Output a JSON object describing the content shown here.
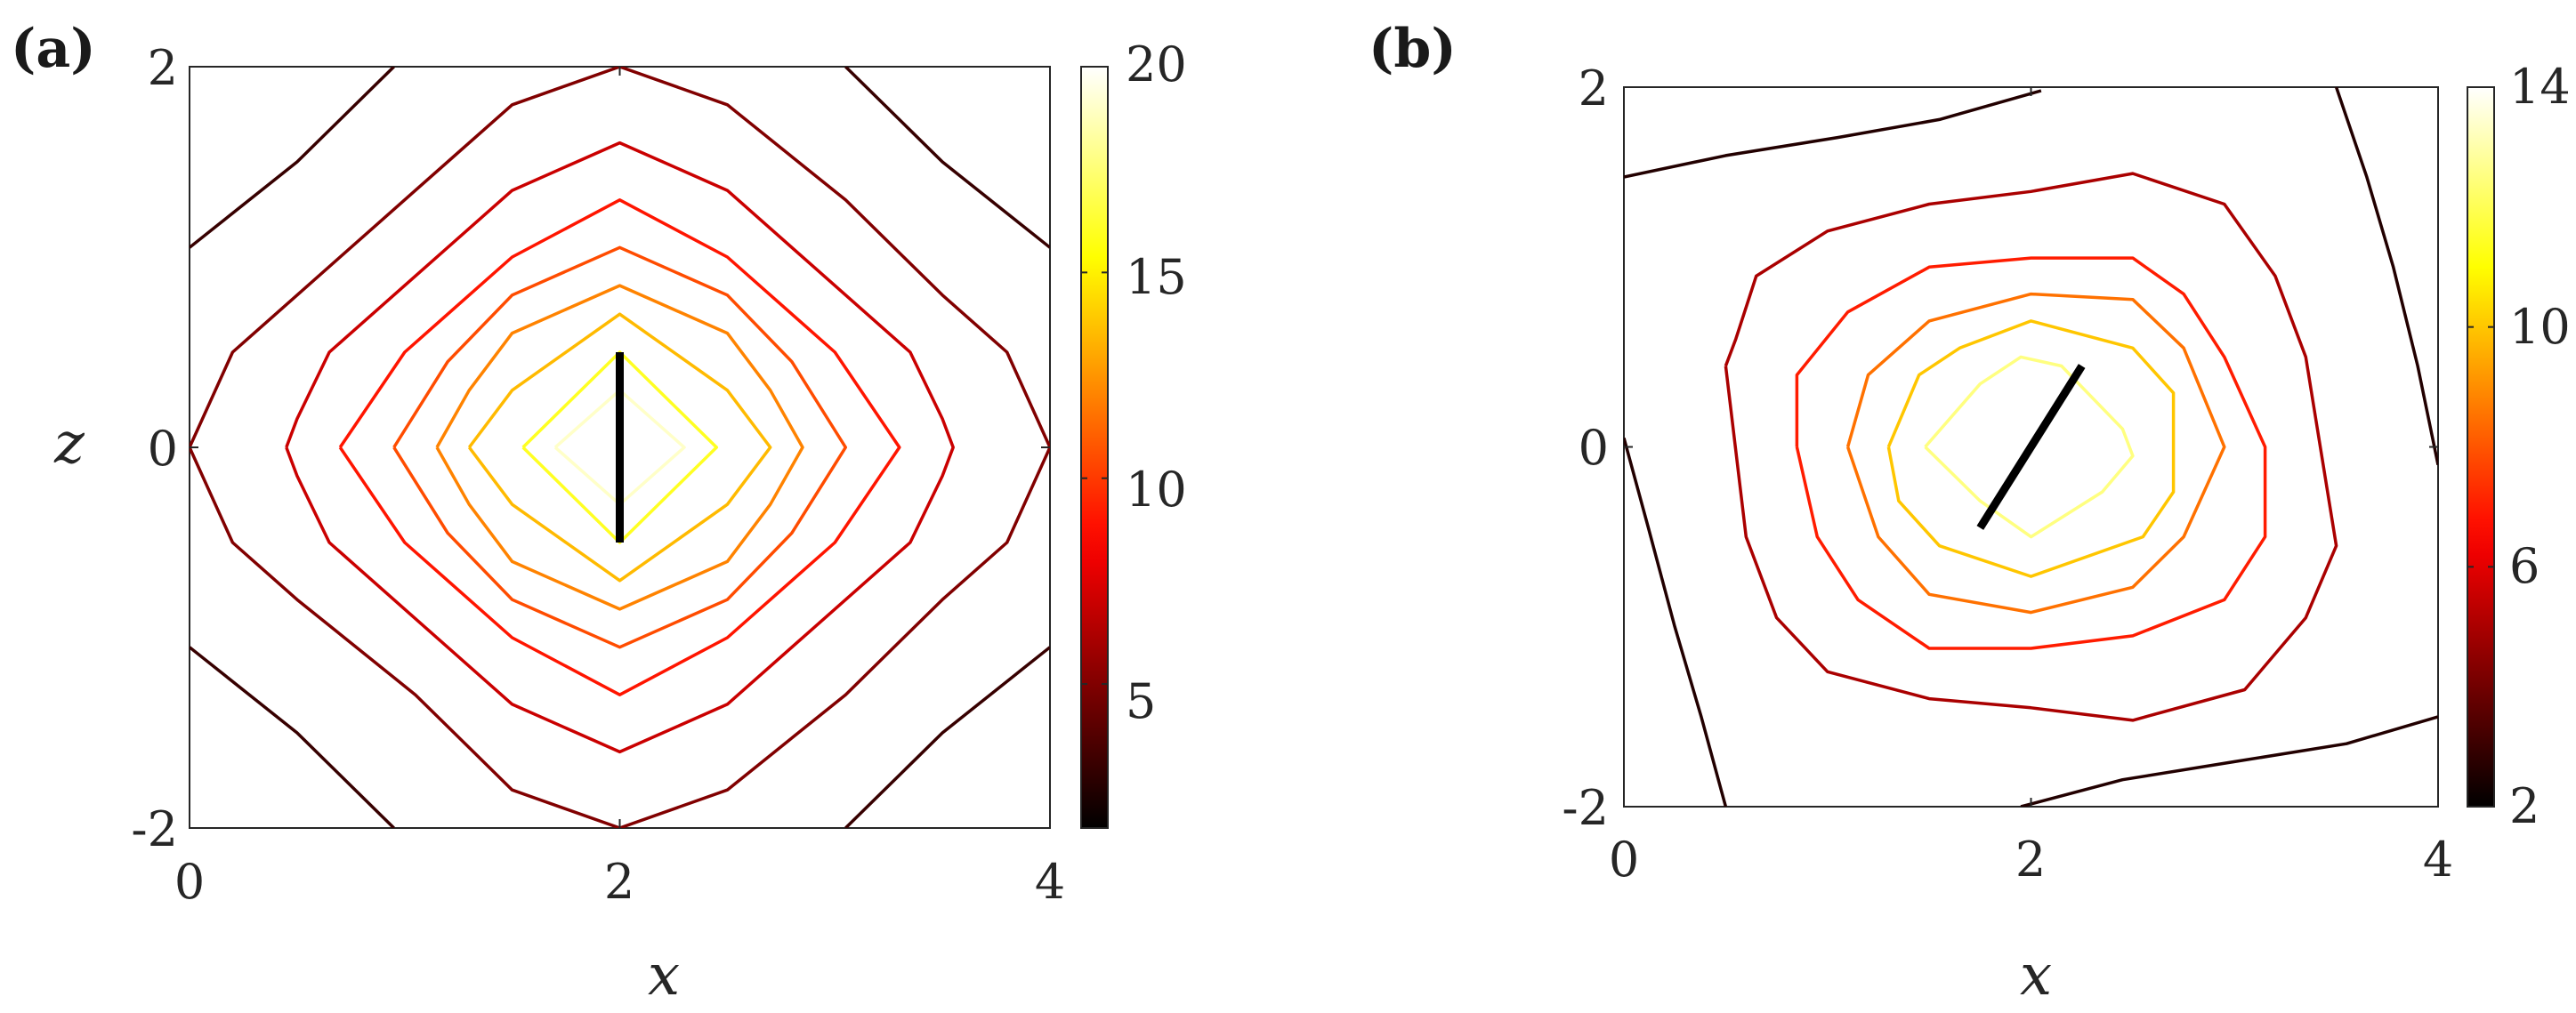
{
  "chart_data": [
    {
      "type": "contour",
      "panel_label": "(a)",
      "xlabel": "x",
      "ylabel": "z",
      "xlim": [
        0,
        4
      ],
      "ylim": [
        -2,
        2
      ],
      "xticks": [
        "0",
        "2",
        "4"
      ],
      "yticks": [
        "-2",
        "0",
        "2"
      ],
      "colorbar": {
        "min": 1.5,
        "max": 20,
        "ticks": [
          5,
          10,
          15,
          20
        ],
        "tick_labels": [
          "5",
          "10",
          "15",
          "20"
        ],
        "colormap": "hot"
      },
      "levels": [
        {
          "value": 3.0,
          "paths": [
            [
              [
                0,
                1.05
              ],
              [
                0.5,
                1.5
              ],
              [
                0.95,
                2.0
              ]
            ],
            [
              [
                3.05,
                2.0
              ],
              [
                3.5,
                1.5
              ],
              [
                4,
                1.05
              ]
            ],
            [
              [
                0,
                -1.05
              ],
              [
                0.5,
                -1.5
              ],
              [
                0.95,
                -2.0
              ]
            ],
            [
              [
                3.05,
                -2.0
              ],
              [
                3.5,
                -1.5
              ],
              [
                4,
                -1.05
              ]
            ]
          ]
        },
        {
          "value": 5.0,
          "paths": [
            [
              [
                0,
                0
              ],
              [
                0.2,
                0.5
              ],
              [
                0.5,
                0.8
              ],
              [
                1.05,
                1.35
              ],
              [
                1.5,
                1.8
              ],
              [
                2,
                2.0
              ],
              [
                2.5,
                1.8
              ],
              [
                3.05,
                1.3
              ],
              [
                3.5,
                0.8
              ],
              [
                3.8,
                0.5
              ],
              [
                4,
                0
              ],
              [
                3.8,
                -0.5
              ],
              [
                3.5,
                -0.8
              ],
              [
                3.05,
                -1.3
              ],
              [
                2.5,
                -1.8
              ],
              [
                2,
                -2.0
              ],
              [
                1.5,
                -1.8
              ],
              [
                1.05,
                -1.3
              ],
              [
                0.5,
                -0.8
              ],
              [
                0.2,
                -0.5
              ],
              [
                0,
                0
              ]
            ]
          ]
        },
        {
          "value": 7.0,
          "paths": [
            [
              [
                0.45,
                0
              ],
              [
                0.5,
                0.15
              ],
              [
                0.65,
                0.5
              ],
              [
                1.1,
                0.95
              ],
              [
                1.5,
                1.35
              ],
              [
                1.8,
                1.5
              ],
              [
                2,
                1.6
              ],
              [
                2.2,
                1.5
              ],
              [
                2.5,
                1.35
              ],
              [
                2.9,
                0.95
              ],
              [
                3.35,
                0.5
              ],
              [
                3.5,
                0.15
              ],
              [
                3.55,
                0
              ],
              [
                3.5,
                -0.15
              ],
              [
                3.35,
                -0.5
              ],
              [
                2.9,
                -0.95
              ],
              [
                2.5,
                -1.35
              ],
              [
                2.2,
                -1.5
              ],
              [
                2,
                -1.6
              ],
              [
                1.8,
                -1.5
              ],
              [
                1.5,
                -1.35
              ],
              [
                1.1,
                -0.95
              ],
              [
                0.65,
                -0.5
              ],
              [
                0.5,
                -0.15
              ],
              [
                0.45,
                0
              ]
            ]
          ]
        },
        {
          "value": 9.0,
          "paths": [
            [
              [
                0.7,
                0
              ],
              [
                1.0,
                0.5
              ],
              [
                1.5,
                1.0
              ],
              [
                2,
                1.3
              ],
              [
                2.5,
                1.0
              ],
              [
                3.0,
                0.5
              ],
              [
                3.3,
                0
              ],
              [
                3.0,
                -0.5
              ],
              [
                2.5,
                -1.0
              ],
              [
                2,
                -1.3
              ],
              [
                1.5,
                -1.0
              ],
              [
                1.0,
                -0.5
              ],
              [
                0.7,
                0
              ]
            ]
          ]
        },
        {
          "value": 10.5,
          "paths": [
            [
              [
                0.95,
                0
              ],
              [
                1.2,
                0.45
              ],
              [
                1.5,
                0.8
              ],
              [
                2,
                1.05
              ],
              [
                2.5,
                0.8
              ],
              [
                2.8,
                0.45
              ],
              [
                3.05,
                0
              ],
              [
                2.8,
                -0.45
              ],
              [
                2.5,
                -0.8
              ],
              [
                2,
                -1.05
              ],
              [
                1.5,
                -0.8
              ],
              [
                1.2,
                -0.45
              ],
              [
                0.95,
                0
              ]
            ]
          ]
        },
        {
          "value": 12.0,
          "paths": [
            [
              [
                1.15,
                0
              ],
              [
                1.3,
                0.3
              ],
              [
                1.5,
                0.6
              ],
              [
                2,
                0.85
              ],
              [
                2.5,
                0.6
              ],
              [
                2.7,
                0.3
              ],
              [
                2.85,
                0
              ],
              [
                2.7,
                -0.3
              ],
              [
                2.5,
                -0.6
              ],
              [
                2,
                -0.85
              ],
              [
                1.5,
                -0.6
              ],
              [
                1.3,
                -0.3
              ],
              [
                1.15,
                0
              ]
            ]
          ]
        },
        {
          "value": 13.5,
          "paths": [
            [
              [
                1.3,
                0
              ],
              [
                1.5,
                0.3
              ],
              [
                2,
                0.7
              ],
              [
                2.5,
                0.3
              ],
              [
                2.7,
                0
              ],
              [
                2.5,
                -0.3
              ],
              [
                2,
                -0.7
              ],
              [
                1.5,
                -0.3
              ],
              [
                1.3,
                0
              ]
            ]
          ]
        },
        {
          "value": 16.0,
          "paths": [
            [
              [
                1.55,
                0
              ],
              [
                2,
                0.5
              ],
              [
                2.45,
                0
              ],
              [
                2,
                -0.5
              ],
              [
                1.55,
                0
              ]
            ]
          ]
        },
        {
          "value": 19.0,
          "paths": [
            [
              [
                1.7,
                0
              ],
              [
                2,
                0.3
              ],
              [
                2.3,
                0
              ],
              [
                2,
                -0.3
              ],
              [
                1.7,
                0
              ]
            ]
          ]
        }
      ],
      "segment": [
        [
          2,
          0.5
        ],
        [
          2,
          -0.5
        ]
      ]
    },
    {
      "type": "contour",
      "panel_label": "(b)",
      "xlabel": "x",
      "ylabel": "",
      "xlim": [
        0,
        4
      ],
      "ylim": [
        -2,
        2
      ],
      "xticks": [
        "0",
        "2",
        "4"
      ],
      "yticks": [
        "-2",
        "0",
        "2"
      ],
      "colorbar": {
        "min": 2,
        "max": 14,
        "ticks": [
          2,
          6,
          10,
          14
        ],
        "tick_labels": [
          "2",
          "6",
          "10",
          "14"
        ],
        "colormap": "hot"
      },
      "levels": [
        {
          "value": 2.6,
          "paths": [
            [
              [
                0,
                1.5
              ],
              [
                0.5,
                1.62
              ],
              [
                1.05,
                1.72
              ],
              [
                1.55,
                1.82
              ],
              [
                2.05,
                1.98
              ]
            ],
            [
              [
                3.5,
                2.0
              ],
              [
                3.65,
                1.5
              ],
              [
                3.78,
                1.0
              ],
              [
                3.9,
                0.45
              ],
              [
                4,
                -0.1
              ]
            ],
            [
              [
                0,
                0.05
              ],
              [
                0.12,
                -0.45
              ],
              [
                0.25,
                -1.0
              ],
              [
                0.38,
                -1.5
              ],
              [
                0.5,
                -2.0
              ]
            ],
            [
              [
                1.95,
                -2.0
              ],
              [
                2.45,
                -1.85
              ],
              [
                3.0,
                -1.75
              ],
              [
                3.55,
                -1.65
              ],
              [
                4,
                -1.5
              ]
            ]
          ]
        },
        {
          "value": 5.0,
          "paths": [
            [
              [
                0.5,
                0.45
              ],
              [
                0.55,
                0.6
              ],
              [
                0.65,
                0.95
              ],
              [
                1.0,
                1.2
              ],
              [
                1.5,
                1.35
              ],
              [
                2,
                1.42
              ],
              [
                2.5,
                1.52
              ],
              [
                2.95,
                1.35
              ],
              [
                3.2,
                0.95
              ],
              [
                3.35,
                0.5
              ],
              [
                3.5,
                -0.55
              ],
              [
                3.35,
                -0.95
              ],
              [
                3.05,
                -1.35
              ],
              [
                2.5,
                -1.52
              ],
              [
                2,
                -1.45
              ],
              [
                1.5,
                -1.4
              ],
              [
                1.0,
                -1.25
              ],
              [
                0.75,
                -0.95
              ],
              [
                0.6,
                -0.5
              ],
              [
                0.5,
                0.45
              ]
            ]
          ]
        },
        {
          "value": 7.0,
          "paths": [
            [
              [
                0.85,
                0
              ],
              [
                0.85,
                0.4
              ],
              [
                1.1,
                0.75
              ],
              [
                1.5,
                1.0
              ],
              [
                2,
                1.05
              ],
              [
                2.5,
                1.05
              ],
              [
                2.75,
                0.85
              ],
              [
                2.95,
                0.5
              ],
              [
                3.15,
                0
              ],
              [
                3.15,
                -0.5
              ],
              [
                2.95,
                -0.85
              ],
              [
                2.5,
                -1.05
              ],
              [
                2,
                -1.12
              ],
              [
                1.5,
                -1.12
              ],
              [
                1.15,
                -0.85
              ],
              [
                0.95,
                -0.5
              ],
              [
                0.85,
                0
              ]
            ]
          ]
        },
        {
          "value": 8.5,
          "paths": [
            [
              [
                1.1,
                0
              ],
              [
                1.2,
                0.4
              ],
              [
                1.5,
                0.7
              ],
              [
                2,
                0.85
              ],
              [
                2.5,
                0.82
              ],
              [
                2.75,
                0.55
              ],
              [
                2.95,
                0
              ],
              [
                2.75,
                -0.5
              ],
              [
                2.5,
                -0.78
              ],
              [
                2,
                -0.92
              ],
              [
                1.5,
                -0.82
              ],
              [
                1.25,
                -0.5
              ],
              [
                1.1,
                0
              ]
            ]
          ]
        },
        {
          "value": 10.0,
          "paths": [
            [
              [
                1.3,
                0
              ],
              [
                1.45,
                0.4
              ],
              [
                1.65,
                0.55
              ],
              [
                2,
                0.7
              ],
              [
                2.5,
                0.55
              ],
              [
                2.7,
                0.3
              ],
              [
                2.7,
                -0.25
              ],
              [
                2.55,
                -0.5
              ],
              [
                2,
                -0.72
              ],
              [
                1.55,
                -0.55
              ],
              [
                1.35,
                -0.3
              ],
              [
                1.3,
                0
              ]
            ]
          ]
        },
        {
          "value": 12.5,
          "paths": [
            [
              [
                1.48,
                0
              ],
              [
                1.75,
                0.35
              ],
              [
                1.95,
                0.5
              ],
              [
                2.15,
                0.45
              ],
              [
                2.45,
                0.1
              ],
              [
                2.5,
                -0.05
              ],
              [
                2.35,
                -0.25
              ],
              [
                2,
                -0.5
              ],
              [
                1.75,
                -0.3
              ],
              [
                1.48,
                0
              ]
            ]
          ]
        }
      ],
      "segment": [
        [
          1.75,
          -0.45
        ],
        [
          2.25,
          0.45
        ]
      ]
    }
  ]
}
